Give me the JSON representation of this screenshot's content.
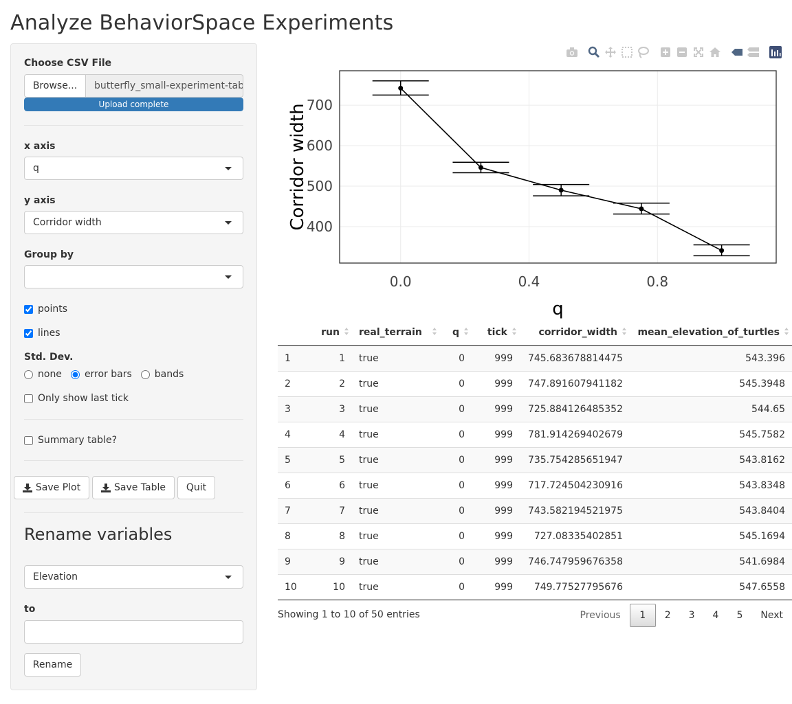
{
  "app": {
    "title": "Analyze BehaviorSpace Experiments"
  },
  "sidebar": {
    "csv": {
      "label": "Choose CSV File",
      "browse_label": "Browse...",
      "file_name": "butterfly_small-experiment-table.csv",
      "progress_text": "Upload complete",
      "progress": 1.0
    },
    "x_axis": {
      "label": "x axis",
      "value": "q"
    },
    "y_axis": {
      "label": "y axis",
      "value": "Corridor width"
    },
    "group_by": {
      "label": "Group by",
      "value": ""
    },
    "points": {
      "label": "points",
      "checked": true
    },
    "lines": {
      "label": "lines",
      "checked": true
    },
    "std_dev": {
      "label": "Std. Dev.",
      "options": [
        "none",
        "error bars",
        "bands"
      ],
      "selected": "error bars"
    },
    "last_tick": {
      "label": "Only show last tick",
      "checked": false
    },
    "summary": {
      "label": "Summary table?",
      "checked": false
    },
    "buttons": {
      "save_plot": "Save Plot",
      "save_table": "Save Table",
      "quit": "Quit"
    },
    "rename": {
      "title": "Rename variables",
      "variable": "Elevation",
      "to_label": "to",
      "to_value": "",
      "button": "Rename"
    }
  },
  "modebar": {
    "icons": [
      "camera-icon",
      "zoom-icon",
      "pan-icon",
      "box-select-icon",
      "lasso-select-icon",
      "zoom-in-icon",
      "zoom-out-icon",
      "autoscale-icon",
      "reset-axes-icon",
      "hover-closest-icon",
      "hover-compare-icon",
      "plotly-logo-icon"
    ]
  },
  "chart_data": {
    "type": "line",
    "xlabel": "q",
    "ylabel": "Corridor width",
    "xlim": [
      -0.19,
      1.17
    ],
    "ylim": [
      310,
      785
    ],
    "xticks": [
      "0.0",
      "0.4",
      "0.8"
    ],
    "yticks": [
      "400",
      "500",
      "600",
      "700"
    ],
    "grid": true,
    "series": [
      {
        "x": [
          0,
          0.25,
          0.5,
          0.75,
          1.0
        ],
        "y": [
          742,
          546,
          490,
          444,
          341
        ],
        "err_low": [
          725,
          533,
          476,
          431,
          328
        ],
        "err_high": [
          760,
          559,
          504,
          458,
          355
        ]
      }
    ]
  },
  "table": {
    "columns": [
      "",
      "run",
      "real_terrain",
      "q",
      "tick",
      "corridor_width",
      "mean_elevation_of_turtles"
    ],
    "rows": [
      [
        "1",
        "1",
        "true",
        "0",
        "999",
        "745.683678814475",
        "543.396"
      ],
      [
        "2",
        "2",
        "true",
        "0",
        "999",
        "747.891607941182",
        "545.3948"
      ],
      [
        "3",
        "3",
        "true",
        "0",
        "999",
        "725.884126485352",
        "544.65"
      ],
      [
        "4",
        "4",
        "true",
        "0",
        "999",
        "781.914269402679",
        "545.7582"
      ],
      [
        "5",
        "5",
        "true",
        "0",
        "999",
        "735.754285651947",
        "543.8162"
      ],
      [
        "6",
        "6",
        "true",
        "0",
        "999",
        "717.724504230916",
        "543.8348"
      ],
      [
        "7",
        "7",
        "true",
        "0",
        "999",
        "743.582194521975",
        "543.8404"
      ],
      [
        "8",
        "8",
        "true",
        "0",
        "999",
        "727.08335402851",
        "545.1694"
      ],
      [
        "9",
        "9",
        "true",
        "0",
        "999",
        "746.747959676358",
        "541.6984"
      ],
      [
        "10",
        "10",
        "true",
        "0",
        "999",
        "749.77527795676",
        "547.6558"
      ]
    ],
    "info": "Showing 1 to 10 of 50 entries",
    "pagination": {
      "previous": "Previous",
      "pages": [
        "1",
        "2",
        "3",
        "4",
        "5"
      ],
      "current": "1",
      "next": "Next"
    }
  }
}
